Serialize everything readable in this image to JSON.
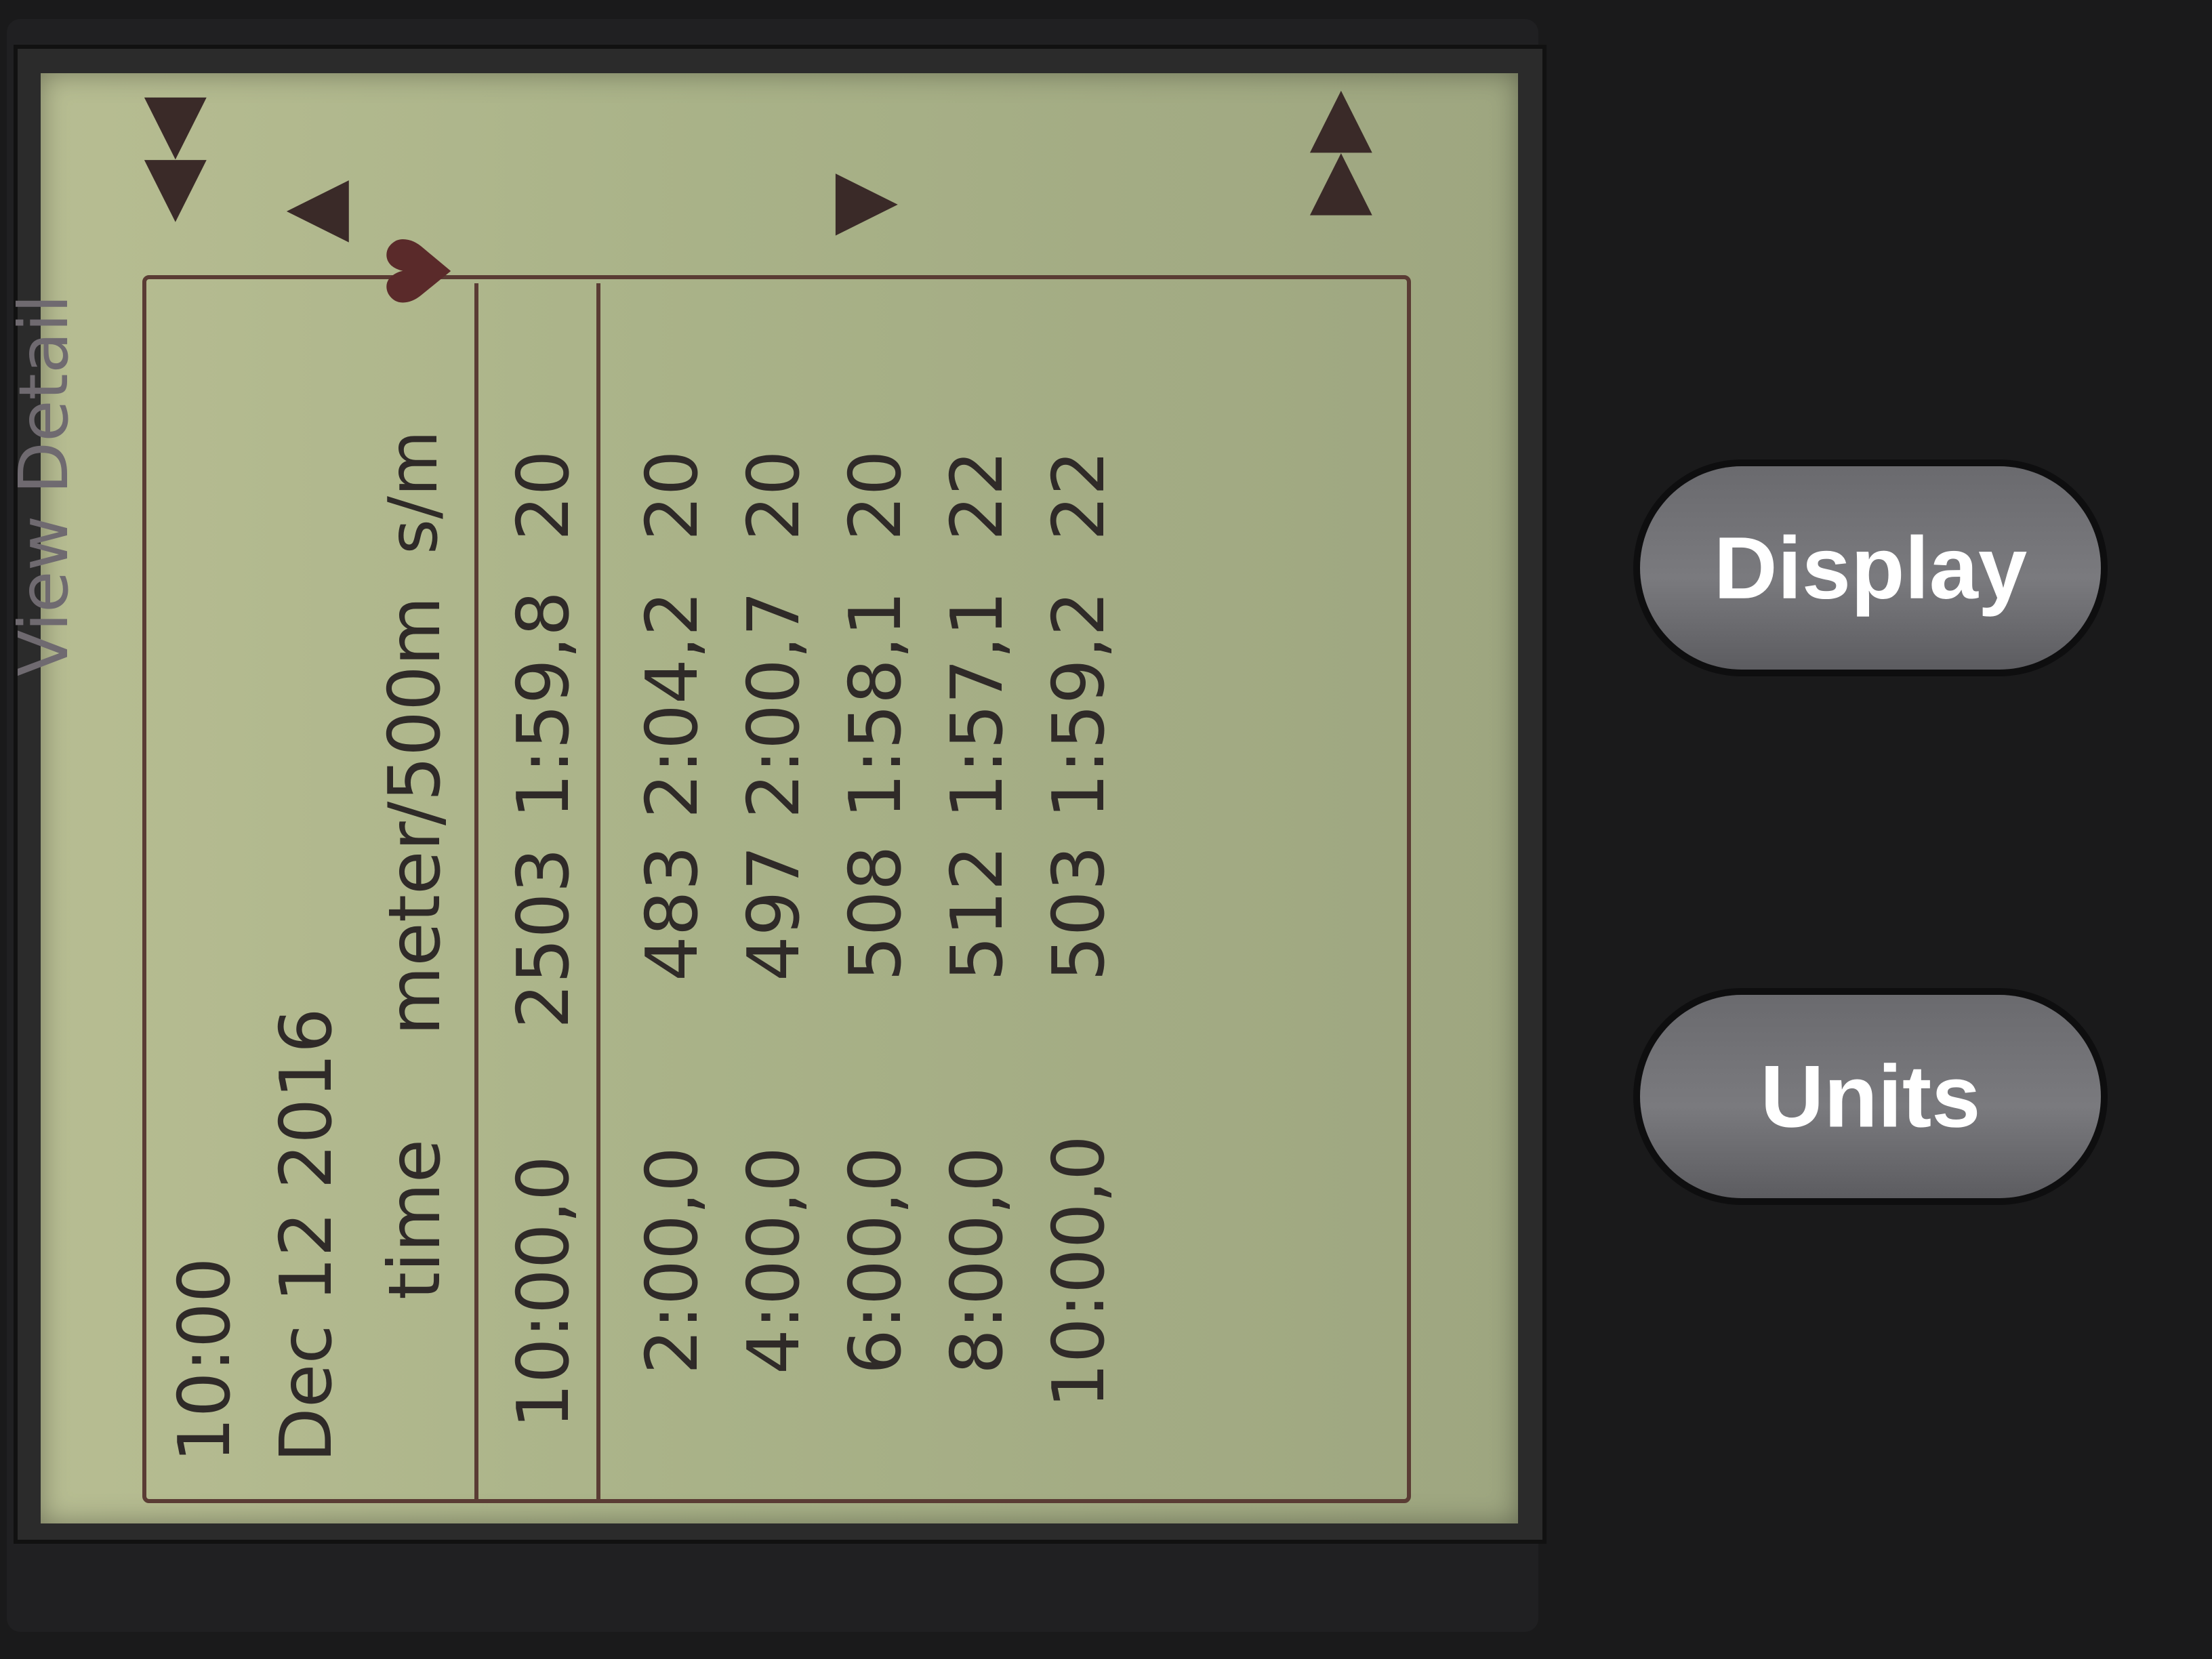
{
  "screen": {
    "view_title": "View Detail",
    "workout_time": "10:00",
    "date": "Dec  12  2016",
    "columns": [
      "time",
      "meter",
      "/500m",
      "s/m"
    ],
    "summary": [
      "10:00,0",
      "2503",
      "1:59,8",
      "20"
    ],
    "splits": [
      [
        "2:00,0",
        "483",
        "2:04,2",
        "20"
      ],
      [
        "4:00,0",
        "497",
        "2:00,7",
        "20"
      ],
      [
        "6:00,0",
        "508",
        "1:58,1",
        "20"
      ],
      [
        "8:00,0",
        "512",
        "1:57,1",
        "22"
      ],
      [
        "10:00,0",
        "503",
        "1:59,2",
        "22"
      ]
    ],
    "heart_icon": "heart-icon"
  },
  "nav": {
    "first_page": "◀◀",
    "page_up": "▲",
    "page_down": "▼",
    "last_page": "▶▶"
  },
  "buttons": {
    "units": "Units",
    "display": "Display"
  }
}
